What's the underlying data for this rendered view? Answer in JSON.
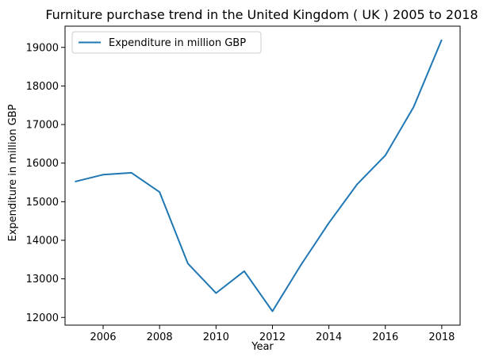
{
  "chart_data": {
    "type": "line",
    "title": "Furniture purchase trend in the United Kingdom ( UK ) 2005 to 2018",
    "xlabel": "Year",
    "ylabel": "Expenditure in million GBP",
    "xlim": [
      2004.65,
      2018.65
    ],
    "ylim": [
      11800,
      19550
    ],
    "x_ticks": [
      2006,
      2008,
      2010,
      2012,
      2014,
      2016,
      2018
    ],
    "y_ticks": [
      12000,
      13000,
      14000,
      15000,
      16000,
      17000,
      18000,
      19000
    ],
    "grid": false,
    "legend_position": "upper-left",
    "series": [
      {
        "name": "Expenditure in million GBP",
        "color": "#1f77b4",
        "x": [
          2005,
          2006,
          2007,
          2008,
          2009,
          2010,
          2011,
          2012,
          2013,
          2014,
          2015,
          2016,
          2017,
          2018
        ],
        "y": [
          15520,
          15700,
          15750,
          15250,
          13400,
          12630,
          13200,
          12160,
          13350,
          14450,
          15450,
          16200,
          17450,
          19200
        ]
      }
    ]
  }
}
